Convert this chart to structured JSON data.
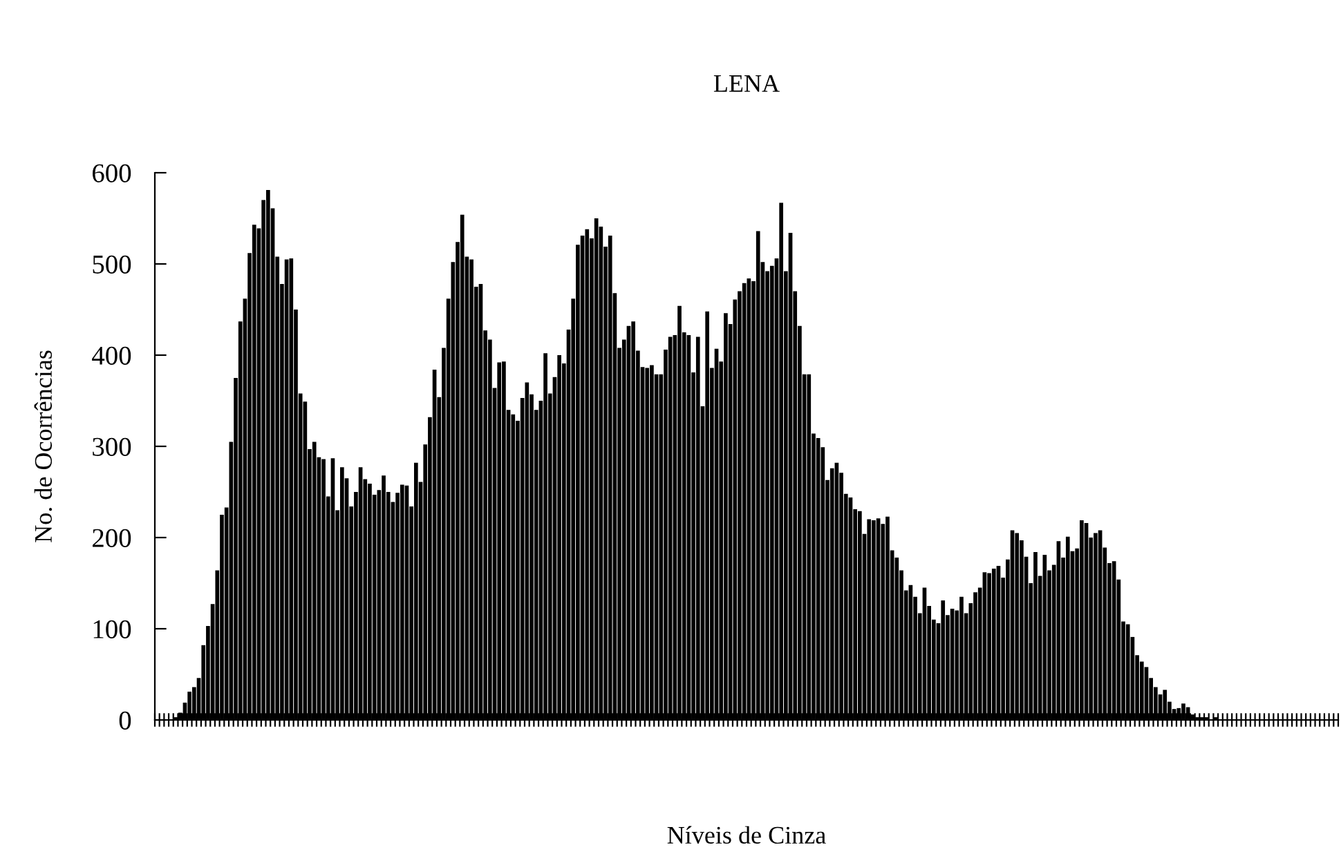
{
  "chart_data": {
    "type": "bar",
    "title": "LENA",
    "xlabel": "Níveis de Cinza",
    "ylabel": "No. de Ocorrências",
    "color": "#000000",
    "categories": [
      null,
      null,
      null,
      null,
      null,
      null,
      null,
      null,
      null,
      null,
      null,
      null,
      null,
      null,
      null,
      null,
      null,
      null,
      null,
      null,
      null,
      null,
      null,
      null,
      null,
      null,
      null,
      null,
      null,
      null,
      null,
      null,
      null,
      null,
      null,
      null,
      null,
      null,
      null,
      null,
      null,
      null,
      null,
      null,
      null,
      null,
      null,
      null,
      null,
      null,
      null,
      null,
      null,
      null,
      null,
      null,
      null,
      null,
      null,
      null,
      null,
      null,
      null,
      null,
      null,
      null,
      null,
      null,
      null,
      null,
      null,
      null,
      null,
      null,
      null,
      null,
      null,
      null,
      null,
      null,
      null,
      null,
      null,
      null,
      null,
      null,
      null,
      null,
      null,
      null,
      null,
      null,
      null,
      null,
      null,
      null,
      null,
      null,
      null,
      null,
      null,
      null,
      null,
      null,
      null,
      null,
      null,
      null,
      null,
      null,
      null,
      null,
      null,
      null,
      null,
      null,
      null,
      null,
      null,
      null,
      null,
      null,
      null,
      null,
      null,
      null,
      null,
      null,
      null,
      null,
      null,
      null,
      null,
      null,
      null,
      null,
      null,
      null,
      null,
      null,
      null,
      null,
      null,
      null,
      null,
      null,
      null,
      null,
      null,
      null,
      null,
      null,
      null,
      null,
      null,
      null,
      null,
      null,
      null,
      null,
      null,
      null,
      null,
      null,
      null,
      null,
      null,
      null,
      null,
      null,
      null,
      null,
      null,
      null,
      null,
      null,
      null,
      null,
      null,
      null,
      null,
      null,
      null,
      null,
      null,
      null,
      null,
      null,
      null,
      null,
      null,
      null,
      null,
      null,
      null,
      null,
      null,
      null,
      null,
      null,
      null,
      null,
      null,
      null,
      null,
      null,
      null,
      null,
      null,
      null,
      null,
      null,
      null,
      null,
      null,
      null,
      null,
      null,
      null,
      null,
      null,
      null,
      null,
      null,
      null,
      null,
      null,
      null,
      null,
      null,
      null,
      null,
      null,
      null,
      null,
      null,
      null,
      null,
      null,
      null,
      null,
      null,
      null,
      null,
      null,
      null,
      null,
      null,
      null,
      null,
      null,
      null,
      null,
      null,
      null,
      null
    ],
    "values": [
      0,
      0,
      0,
      0,
      3,
      8,
      19,
      31,
      36,
      46,
      82,
      103,
      127,
      164,
      225,
      233,
      305,
      375,
      437,
      462,
      512,
      543,
      539,
      570,
      581,
      561,
      508,
      478,
      505,
      506,
      450,
      358,
      349,
      297,
      305,
      288,
      286,
      245,
      287,
      230,
      277,
      265,
      234,
      250,
      277,
      264,
      259,
      247,
      252,
      268,
      250,
      239,
      249,
      258,
      257,
      234,
      282,
      261,
      302,
      332,
      384,
      354,
      408,
      462,
      502,
      524,
      554,
      508,
      505,
      475,
      478,
      427,
      417,
      364,
      392,
      393,
      340,
      335,
      328,
      353,
      370,
      357,
      340,
      350,
      402,
      358,
      376,
      400,
      391,
      428,
      462,
      521,
      531,
      538,
      528,
      550,
      541,
      519,
      531,
      468,
      408,
      417,
      432,
      437,
      405,
      387,
      386,
      389,
      379,
      379,
      406,
      420,
      422,
      454,
      425,
      422,
      381,
      420,
      344,
      448,
      386,
      407,
      393,
      446,
      434,
      461,
      470,
      479,
      484,
      481,
      536,
      502,
      492,
      498,
      506,
      567,
      492,
      534,
      470,
      432,
      379,
      379,
      314,
      309,
      299,
      263,
      276,
      282,
      271,
      248,
      244,
      231,
      229,
      204,
      220,
      219,
      221,
      215,
      223,
      186,
      178,
      164,
      142,
      148,
      135,
      117,
      145,
      125,
      110,
      106,
      131,
      115,
      122,
      120,
      135,
      117,
      128,
      140,
      145,
      162,
      161,
      166,
      169,
      156,
      176,
      208,
      205,
      197,
      179,
      150,
      184,
      158,
      181,
      164,
      170,
      196,
      178,
      201,
      185,
      188,
      219,
      216,
      200,
      205,
      208,
      189,
      172,
      174,
      154,
      108,
      105,
      91,
      71,
      64,
      58,
      46,
      36,
      28,
      33,
      20,
      12,
      13,
      18,
      14,
      6,
      3,
      3,
      3,
      0,
      3,
      0,
      0,
      0,
      0,
      0,
      0,
      0,
      0,
      0,
      0,
      0,
      0,
      0,
      0,
      0,
      0,
      0,
      0,
      0,
      0,
      0,
      0,
      0,
      0,
      0,
      0
    ],
    "ylim": [
      0,
      600
    ],
    "yticks": [
      0,
      100,
      200,
      300,
      400,
      500,
      600
    ],
    "grid": false,
    "legend": false
  }
}
